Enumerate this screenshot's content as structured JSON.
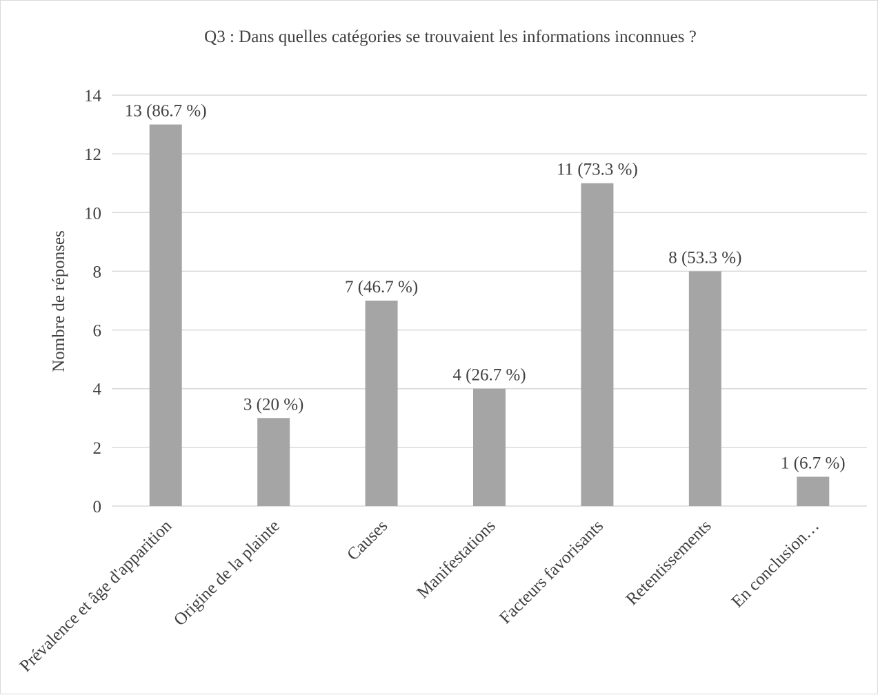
{
  "chart_data": {
    "type": "bar",
    "title": "Q3 : Dans quelles catégories se trouvaient les informations inconnues ?",
    "xlabel": "",
    "ylabel": "Nombre de réponses",
    "ylim": [
      0,
      14
    ],
    "yticks": [
      0,
      2,
      4,
      6,
      8,
      10,
      12,
      14
    ],
    "grid": true,
    "categories": [
      "Prévalence et âge d'apparition",
      "Origine de la plainte",
      "Causes",
      "Manifestations",
      "Facteurs favorisants",
      "Retentissements",
      "En conclusion…"
    ],
    "values": [
      13,
      3,
      7,
      4,
      11,
      8,
      1
    ],
    "data_labels": [
      "13 (86.7 %)",
      "3 (20 %)",
      "7 (46.7 %)",
      "4 (26.7 %)",
      "11 (73.3 %)",
      "8 (53.3 %)",
      "1 (6.7 %)"
    ],
    "colors": {
      "bar": "#a5a5a5",
      "grid": "#d9d9d9",
      "text": "#404040"
    }
  }
}
